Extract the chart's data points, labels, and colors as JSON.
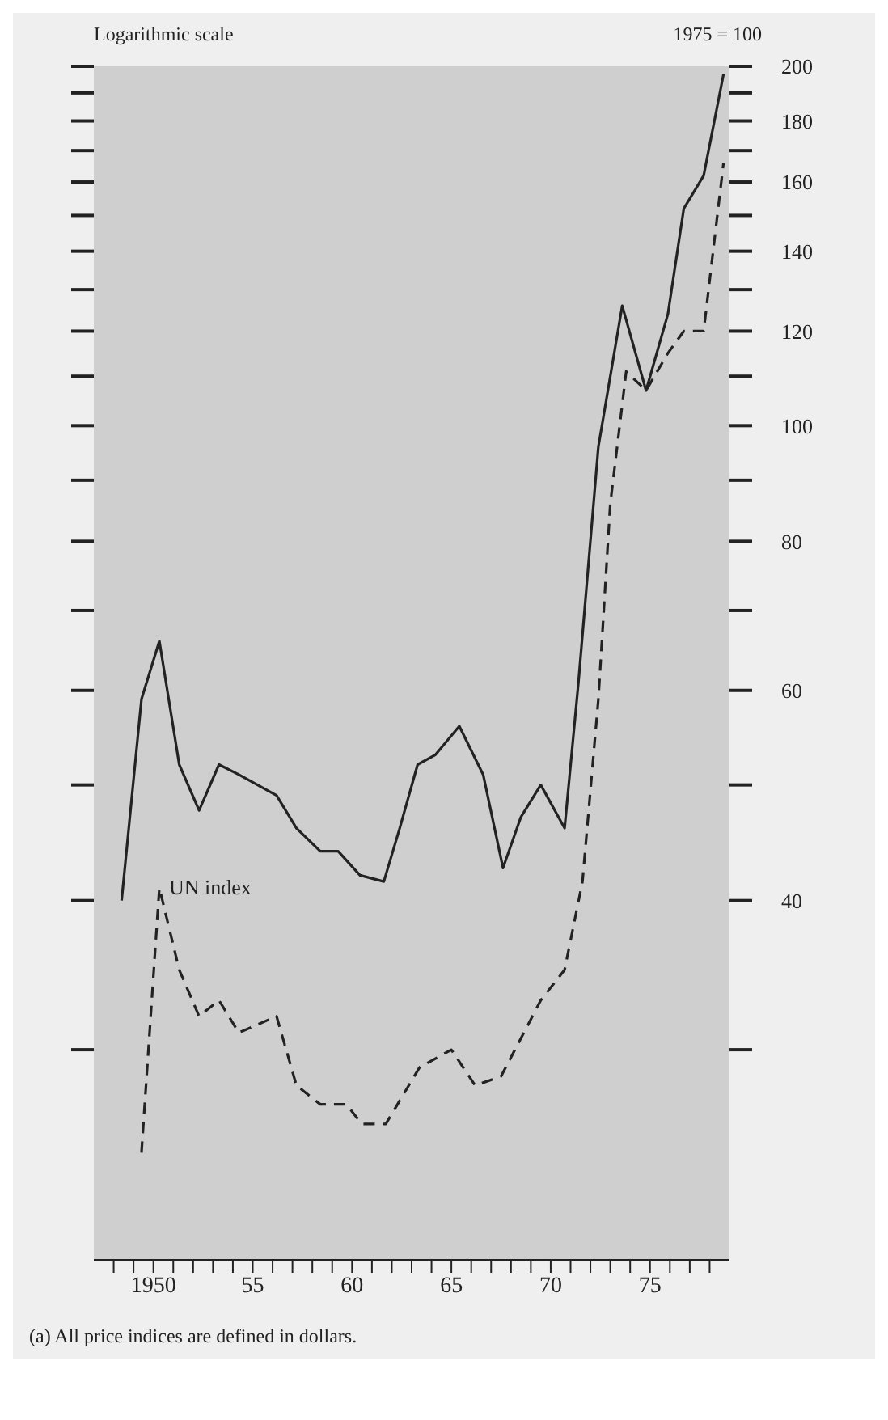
{
  "chart_data": {
    "type": "line",
    "ylabel": "1975 = 100",
    "annotations": [
      "Logarithmic scale",
      "(a) All price indices are defined in dollars."
    ],
    "log": true,
    "marker": "none",
    "xlim": [
      1947,
      1979
    ],
    "xticks": [
      {
        "value": 1948,
        "label": null
      },
      {
        "value": 1949,
        "label": null
      },
      1950,
      {
        "value": 1951,
        "label": null
      },
      {
        "value": 1952,
        "label": null
      },
      {
        "value": 1953,
        "label": null
      },
      {
        "value": 1954,
        "label": null
      },
      {
        "value": 1955,
        "label": "55"
      },
      {
        "value": 1956,
        "label": null
      },
      {
        "value": 1957,
        "label": null
      },
      {
        "value": 1958,
        "label": null
      },
      {
        "value": 1959,
        "label": null
      },
      {
        "value": 1960,
        "label": "60"
      },
      {
        "value": 1961,
        "label": null
      },
      {
        "value": 1962,
        "label": null
      },
      {
        "value": 1963,
        "label": null
      },
      {
        "value": 1964,
        "label": null
      },
      {
        "value": 1965,
        "label": "65"
      },
      {
        "value": 1966,
        "label": null
      },
      {
        "value": 1967,
        "label": null
      },
      {
        "value": 1968,
        "label": null
      },
      {
        "value": 1969,
        "label": null
      },
      {
        "value": 1970,
        "label": "70"
      },
      {
        "value": 1971,
        "label": null
      },
      {
        "value": 1972,
        "label": null
      },
      {
        "value": 1973,
        "label": null
      },
      {
        "value": 1974,
        "label": null
      },
      {
        "value": 1975,
        "label": "75"
      },
      {
        "value": 1976,
        "label": null
      },
      {
        "value": 1977,
        "label": null
      },
      {
        "value": 1978,
        "label": null
      }
    ],
    "ylim": [
      20,
      200
    ],
    "yticks": [
      {
        "value": 30,
        "label": null
      },
      40,
      {
        "value": 50,
        "label": null
      },
      60,
      {
        "value": 70,
        "label": null
      },
      80,
      {
        "value": 90,
        "label": null
      },
      100,
      {
        "value": 110,
        "label": null
      },
      120,
      {
        "value": 130,
        "label": null
      },
      140,
      {
        "value": 150,
        "label": null
      },
      160,
      {
        "value": 170,
        "label": null
      },
      180,
      {
        "value": 190,
        "label": null
      },
      200
    ],
    "series": [
      {
        "color": "#222222",
        "line_style": "solid",
        "x": [
          1948.4,
          1949.4,
          1950.3,
          1951.3,
          1952.3,
          1953.3,
          1954.3,
          1956.2,
          1957.2,
          1958.4,
          1959.3,
          1960.4,
          1961.6,
          1962.4,
          1963.3,
          1964.2,
          1965.4,
          1966.6,
          1967.6,
          1968.5,
          1969.5,
          1970.7,
          1971.4,
          1972.4,
          1973.6,
          1974.8,
          1975.9,
          1976.7,
          1977.7,
          1978.7
        ],
        "values": [
          40,
          59,
          66,
          52,
          47.6,
          52,
          51,
          49,
          46,
          44,
          44,
          42,
          41.5,
          46,
          52,
          53,
          56,
          51,
          42.6,
          47,
          50,
          46,
          61,
          96,
          126,
          107,
          124,
          152,
          162,
          197
        ]
      },
      {
        "name": "UN index",
        "color": "#222222",
        "line_style": "dashed",
        "x": [
          1949.4,
          1950.3,
          1951.3,
          1952.3,
          1953.3,
          1954.3,
          1956.2,
          1957.2,
          1958.4,
          1959.7,
          1960.5,
          1961.7,
          1963.4,
          1965,
          1966.2,
          1967.5,
          1969.5,
          1970.7,
          1971.6,
          1972.4,
          1973,
          1973.8,
          1974.8,
          1975.9,
          1976.7,
          1977.7,
          1978.7
        ],
        "values": [
          24.6,
          41,
          35,
          32,
          33,
          31,
          32,
          28,
          27,
          27,
          26,
          26,
          29,
          30,
          28,
          28.5,
          33,
          35,
          41.5,
          59,
          86,
          111,
          107,
          115,
          120,
          120,
          166
        ]
      }
    ]
  }
}
